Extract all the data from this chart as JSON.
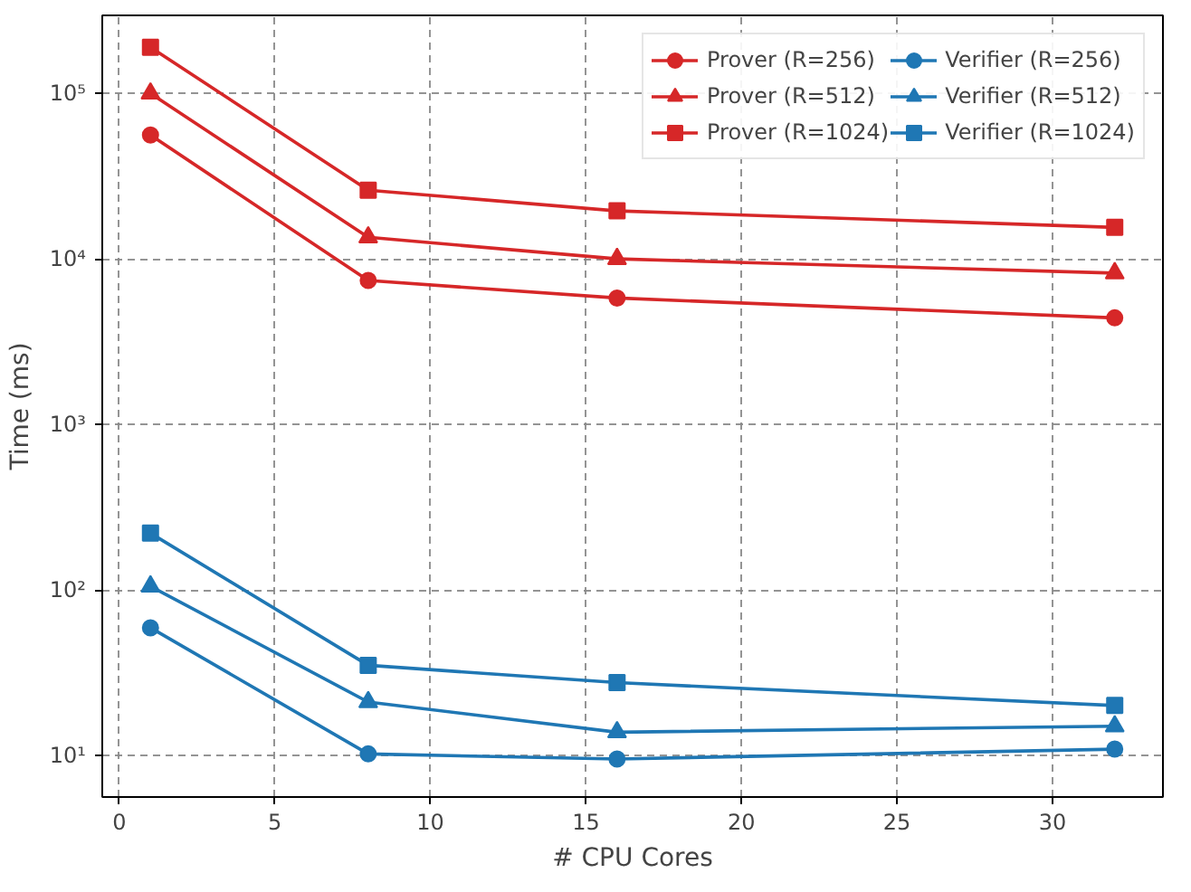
{
  "chart_data": {
    "type": "line",
    "xlabel": "# CPU Cores",
    "ylabel": "Time (ms)",
    "log": "y",
    "grid": true,
    "legend": "top right",
    "line_style": "solid",
    "x": [
      1,
      8,
      16,
      32
    ],
    "xlim": [
      -0.55,
      33.55
    ],
    "xticks": [
      0,
      5,
      10,
      15,
      20,
      25,
      30
    ],
    "ylim": [
      5.6,
      296000
    ],
    "yticks": [
      {
        "value": 10,
        "label": "10¹"
      },
      {
        "value": 100,
        "label": "10²"
      },
      {
        "value": 1000,
        "label": "10³"
      },
      {
        "value": 10000,
        "label": "10⁴"
      },
      {
        "value": 100000,
        "label": "10⁵"
      }
    ],
    "series": [
      {
        "name": "Prover (R=256)",
        "color": "#d62728",
        "marker": "circle",
        "values": [
          56000,
          7400,
          5800,
          4400
        ]
      },
      {
        "name": "Prover (R=512)",
        "color": "#d62728",
        "marker": "triangle",
        "values": [
          100000,
          13500,
          10000,
          8200
        ]
      },
      {
        "name": "Prover (R=1024)",
        "color": "#d62728",
        "marker": "square",
        "values": [
          190000,
          26000,
          19500,
          15500
        ]
      },
      {
        "name": "Verifier (R=256)",
        "color": "#1f77b4",
        "marker": "circle",
        "values": [
          59,
          10.2,
          9.5,
          10.9
        ]
      },
      {
        "name": "Verifier (R=512)",
        "color": "#1f77b4",
        "marker": "triangle",
        "values": [
          105,
          21,
          13.8,
          15
        ]
      },
      {
        "name": "Verifier (R=1024)",
        "color": "#1f77b4",
        "marker": "square",
        "values": [
          220,
          35,
          27.5,
          20
        ]
      }
    ]
  }
}
